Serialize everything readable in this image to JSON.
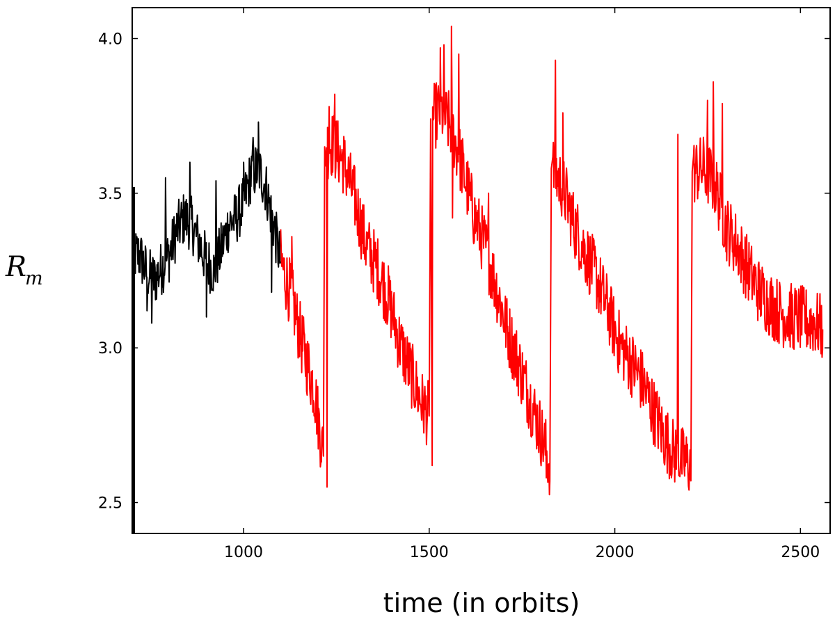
{
  "chart_data": {
    "type": "line",
    "title": "",
    "xlabel": "time (in orbits)",
    "ylabel": "R",
    "ylabel_subscript": "m",
    "xlim": [
      700,
      2580
    ],
    "ylim": [
      2.4,
      4.1
    ],
    "xticks": [
      1000,
      1500,
      2000,
      2500
    ],
    "xtick_labels": [
      "1000",
      "1500",
      "2000",
      "2500"
    ],
    "yticks": [
      2.5,
      3.0,
      3.5,
      4.0
    ],
    "ytick_labels": [
      "2.5",
      "3.0",
      "3.5",
      "4.0"
    ],
    "grid": false,
    "series": [
      {
        "color": "#000000",
        "x": [
          700,
          720,
          740,
          760,
          780,
          800,
          820,
          840,
          860,
          880,
          900,
          920,
          940,
          960,
          980,
          1000,
          1020,
          1040,
          1060,
          1080,
          1100
        ],
        "y": [
          3.3,
          3.3,
          3.24,
          3.22,
          3.26,
          3.3,
          3.38,
          3.42,
          3.4,
          3.34,
          3.28,
          3.25,
          3.32,
          3.4,
          3.42,
          3.47,
          3.56,
          3.58,
          3.52,
          3.4,
          3.28
        ],
        "noise": 0.09,
        "spike_up": [
          [
            855,
            3.6
          ],
          [
            925,
            3.54
          ],
          [
            1040,
            3.73
          ],
          [
            1025,
            3.68
          ],
          [
            1000,
            3.6
          ],
          [
            790,
            3.55
          ]
        ],
        "spike_down": [
          [
            752,
            3.08
          ],
          [
            900,
            3.1
          ],
          [
            1075,
            3.18
          ],
          [
            740,
            3.12
          ]
        ]
      },
      {
        "color": "#ff0000",
        "x": [
          1100,
          1130,
          1160,
          1190,
          1215,
          1222,
          1240,
          1270,
          1300,
          1330,
          1360,
          1390,
          1420,
          1450,
          1480,
          1500,
          1508,
          1530,
          1560,
          1590,
          1620,
          1650,
          1680,
          1710,
          1740,
          1770,
          1800,
          1825,
          1833,
          1860,
          1890,
          1920,
          1950,
          1980,
          2010,
          2040,
          2070,
          2100,
          2130,
          2160,
          2190,
          2205,
          2212,
          2240,
          2270,
          2300,
          2330,
          2360,
          2390,
          2420,
          2450,
          2480,
          2510,
          2540,
          2560
        ],
        "y": [
          3.28,
          3.16,
          3.0,
          2.87,
          2.65,
          3.65,
          3.66,
          3.6,
          3.48,
          3.33,
          3.26,
          3.16,
          3.02,
          2.92,
          2.82,
          2.78,
          3.74,
          3.77,
          3.71,
          3.58,
          3.43,
          3.33,
          3.2,
          3.06,
          2.95,
          2.84,
          2.73,
          2.62,
          3.58,
          3.52,
          3.4,
          3.31,
          3.23,
          3.13,
          3.02,
          2.96,
          2.9,
          2.81,
          2.72,
          2.66,
          2.63,
          2.62,
          3.57,
          3.58,
          3.53,
          3.39,
          3.33,
          3.25,
          3.18,
          3.14,
          3.11,
          3.1,
          3.09,
          3.08,
          3.06
        ],
        "noise": 0.11,
        "spike_up": [
          [
            1230,
            3.78
          ],
          [
            1245,
            3.82
          ],
          [
            1530,
            3.97
          ],
          [
            1540,
            3.98
          ],
          [
            1560,
            4.04
          ],
          [
            1580,
            3.95
          ],
          [
            1840,
            3.93
          ],
          [
            1860,
            3.76
          ],
          [
            1660,
            3.5
          ],
          [
            2170,
            3.69
          ],
          [
            2265,
            3.86
          ],
          [
            2290,
            3.79
          ],
          [
            1130,
            3.36
          ],
          [
            2250,
            3.8
          ]
        ],
        "spike_down": [
          [
            1225,
            2.55
          ],
          [
            1508,
            2.62
          ],
          [
            1825,
            2.57
          ],
          [
            2205,
            2.57
          ],
          [
            1563,
            3.42
          ],
          [
            1885,
            3.4
          ],
          [
            2160,
            2.68
          ],
          [
            1815,
            2.58
          ],
          [
            2480,
            3.0
          ]
        ]
      }
    ]
  }
}
